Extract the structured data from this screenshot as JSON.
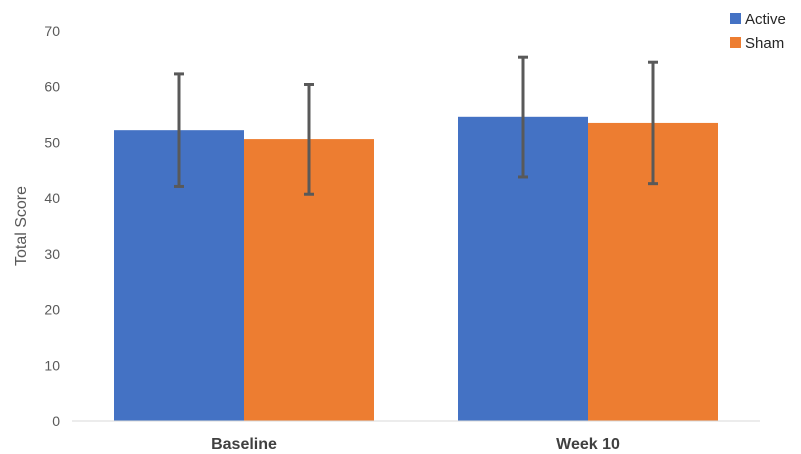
{
  "chart_data": {
    "type": "bar",
    "title": "",
    "xlabel": "",
    "ylabel": "Total Score",
    "ylim": [
      0,
      70
    ],
    "yticks": [
      0,
      10,
      20,
      30,
      40,
      50,
      60,
      70
    ],
    "grid": false,
    "legend_position": "top-right",
    "categories": [
      "Baseline",
      "Week 10"
    ],
    "series": [
      {
        "name": "Active",
        "color": "#4472C4",
        "values": [
          52.2,
          54.6
        ],
        "error_low": [
          42.1,
          43.8
        ],
        "error_high": [
          62.3,
          65.3
        ]
      },
      {
        "name": "Sham",
        "color": "#ED7D31",
        "values": [
          50.6,
          53.5
        ],
        "error_low": [
          40.7,
          42.6
        ],
        "error_high": [
          60.4,
          64.4
        ]
      }
    ],
    "error_bar_color": "#595959"
  }
}
